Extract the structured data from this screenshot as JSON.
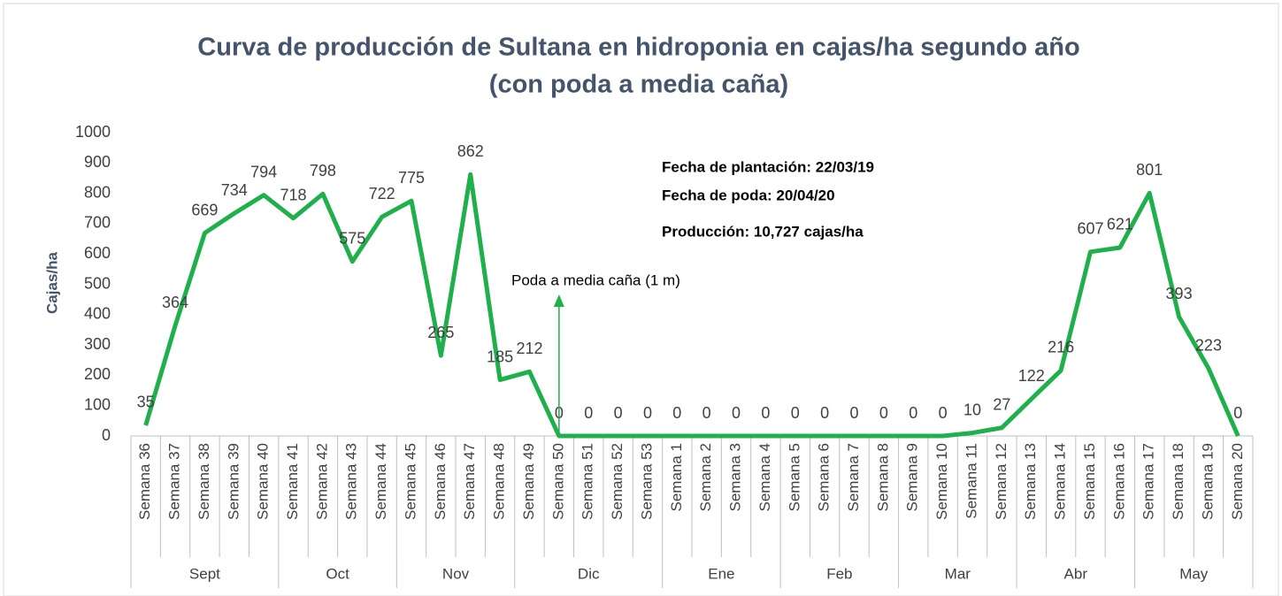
{
  "chart_data": {
    "type": "line",
    "title": [
      "Curva de producción de Sultana en hidroponia en cajas/ha segundo año",
      "(con poda a media caña)"
    ],
    "y_label": "Cajas/ha",
    "categories": [
      "Semana 36",
      "Semana 37",
      "Semana 38",
      "Semana 39",
      "Semana 40",
      "Semana 41",
      "Semana 42",
      "Semana 43",
      "Semana 44",
      "Semana 45",
      "Semana 46",
      "Semana 47",
      "Semana 48",
      "Semana 49",
      "Semana 50",
      "Semana 51",
      "Semana 52",
      "Semana 53",
      "Semana 1",
      "Semana 2",
      "Semana 3",
      "Semana 4",
      "Semana 5",
      "Semana 6",
      "Semana 7",
      "Semana 8",
      "Semana 9",
      "Semana 10",
      "Semana 11",
      "Semana 12",
      "Semana 13",
      "Semana 14",
      "Semana 15",
      "Semana 16",
      "Semana 17",
      "Semana 18",
      "Semana 19",
      "Semana 20"
    ],
    "groups": [
      {
        "label": "Sept",
        "count": 5
      },
      {
        "label": "Oct",
        "count": 4
      },
      {
        "label": "Nov",
        "count": 4
      },
      {
        "label": "Dic",
        "count": 5
      },
      {
        "label": "Ene",
        "count": 4
      },
      {
        "label": "Feb",
        "count": 4
      },
      {
        "label": "Mar",
        "count": 4
      },
      {
        "label": "Abr",
        "count": 4
      },
      {
        "label": "May",
        "count": 4
      }
    ],
    "values": [
      35,
      364,
      669,
      734,
      794,
      718,
      798,
      575,
      722,
      775,
      265,
      862,
      185,
      212,
      0,
      0,
      0,
      0,
      0,
      0,
      0,
      0,
      0,
      0,
      0,
      0,
      0,
      0,
      10,
      27,
      122,
      216,
      607,
      621,
      801,
      393,
      223,
      0
    ],
    "color": "#1fb04b",
    "ylim": [
      0,
      1000
    ],
    "yticks": [
      0,
      100,
      200,
      300,
      400,
      500,
      600,
      700,
      800,
      900,
      1000
    ],
    "grid": false,
    "annotations": [
      "Fecha de plantación: 22/03/19",
      "Fecha de poda: 20/04/20",
      "Producción: 10,727 cajas/ha"
    ],
    "arrow_annotation": "Poda a media caña (1 m)"
  }
}
